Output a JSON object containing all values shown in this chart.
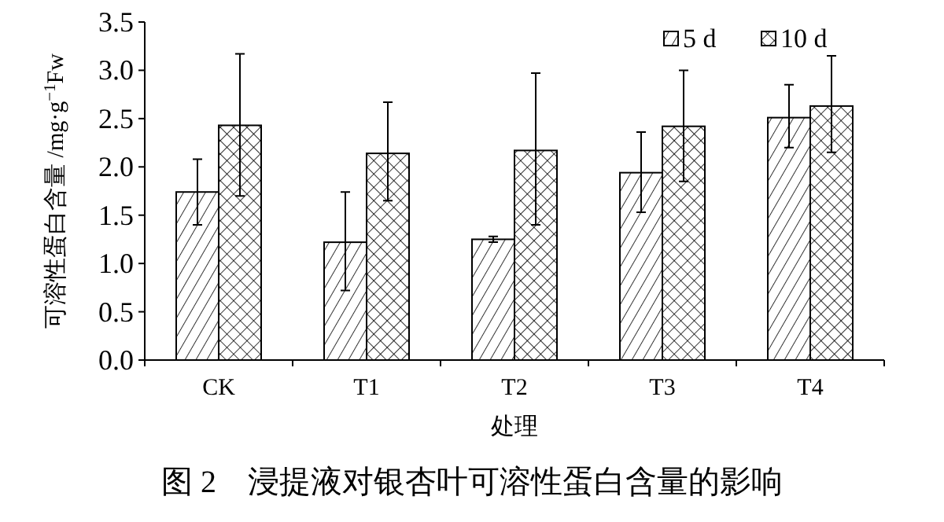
{
  "chart_data": {
    "type": "bar",
    "title": "图 2　浸提液对银杏叶可溶性蛋白含量的影响",
    "xlabel": "处理",
    "ylabel": "可溶性蛋白含量 /mg·g$^{−1}$Fw",
    "categories": [
      "CK",
      "T1",
      "T2",
      "T3",
      "T4"
    ],
    "series": [
      {
        "name": "5 d",
        "color": "#000000",
        "values": [
          1.74,
          1.22,
          1.25,
          1.94,
          2.51
        ],
        "errors": [
          [
            1.4,
            2.08
          ],
          [
            0.72,
            1.74
          ],
          [
            1.22,
            1.28
          ],
          [
            1.53,
            2.36
          ],
          [
            2.2,
            2.85
          ]
        ]
      },
      {
        "name": "10 d",
        "color": "#000000",
        "values": [
          2.43,
          2.14,
          2.17,
          2.42,
          2.63
        ],
        "errors": [
          [
            1.7,
            3.17
          ],
          [
            1.65,
            2.67
          ],
          [
            1.4,
            2.97
          ],
          [
            1.85,
            3.0
          ],
          [
            2.15,
            3.15
          ]
        ]
      }
    ],
    "ylim": [
      0,
      3.5
    ],
    "yticks": [
      {
        "value": 0,
        "label": "0.0"
      },
      0.5,
      {
        "value": 1,
        "label": "1.0"
      },
      1.5,
      {
        "value": 2,
        "label": "2.0"
      },
      2.5,
      {
        "value": 3,
        "label": "3.0"
      },
      3.5
    ],
    "legend": "top right",
    "grid": false
  }
}
